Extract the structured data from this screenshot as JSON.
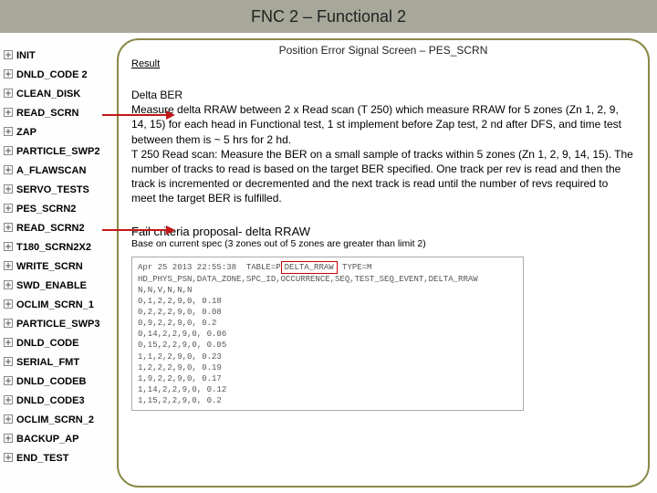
{
  "header": {
    "title": "FNC 2 – Functional 2"
  },
  "sidebar": {
    "items": [
      {
        "label": "INIT"
      },
      {
        "label": "DNLD_CODE 2"
      },
      {
        "label": "CLEAN_DISK"
      },
      {
        "label": "READ_SCRN"
      },
      {
        "label": "ZAP"
      },
      {
        "label": "PARTICLE_SWP2"
      },
      {
        "label": "A_FLAWSCAN"
      },
      {
        "label": "SERVO_TESTS"
      },
      {
        "label": "PES_SCRN2"
      },
      {
        "label": "READ_SCRN2"
      },
      {
        "label": "T180_SCRN2X2"
      },
      {
        "label": "WRITE_SCRN"
      },
      {
        "label": "SWD_ENABLE"
      },
      {
        "label": "OCLIM_SCRN_1"
      },
      {
        "label": "PARTICLE_SWP3"
      },
      {
        "label": "DNLD_CODE"
      },
      {
        "label": "SERIAL_FMT"
      },
      {
        "label": "DNLD_CODEB"
      },
      {
        "label": "DNLD_CODE3"
      },
      {
        "label": "OCLIM_SCRN_2"
      },
      {
        "label": "BACKUP_AP"
      },
      {
        "label": "END_TEST"
      }
    ]
  },
  "panel": {
    "title": "Position Error Signal Screen – PES_SCRN",
    "result_label": "Result",
    "body_heading": "Delta BER",
    "body_p1": "Measure delta RRAW between 2 x Read scan (T 250)  which measure RRAW for 5 zones (Zn 1, 2, 9, 14, 15) for each head in Functional test, 1 st implement before Zap test, 2 nd after DFS, and time test between them is ~ 5 hrs for 2 hd.",
    "body_p2": "T 250 Read scan: Measure the BER on a small sample of tracks within 5 zones (Zn 1, 2, 9, 14, 15). The number of tracks to read is based on the target BER specified. One track per rev is read and then the track is incremented or decremented and the next track is read until the number of revs required to meet the target BER is fulfilled.",
    "fail_title": "Fail criteria proposal- delta RRAW",
    "fail_sub": "Base on current spec (3 zones out of 5 zones are greater than limit 2)",
    "code": {
      "line1_pre": "Apr 25 2013 22:55:38  TABLE=P",
      "line1_hl": "DELTA_RRAW",
      "line1_post": " TYPE=M",
      "lines": [
        "HD_PHYS_PSN,DATA_ZONE,SPC_ID,OCCURRENCE,SEQ,TEST_SEQ_EVENT,DELTA_RRAW",
        "N,N,V,N,N,N",
        "0,1,2,2,9,0, 0.18",
        "0,2,2,2,9,0, 0.08",
        "0,9,2,2,9,0, 0.2",
        "0,14,2,2,9,0, 0.06",
        "0,15,2,2,9,0, 0.05",
        "1,1,2,2,9,0, 0.23",
        "1,2,2,2,9,0, 0.19",
        "1,9,2,2,9,0, 0.17",
        "1,14,2,2,9,0, 0.12",
        "1,15,2,2,9,0, 0.2"
      ]
    }
  },
  "arrows": {
    "color": "#c21818"
  }
}
